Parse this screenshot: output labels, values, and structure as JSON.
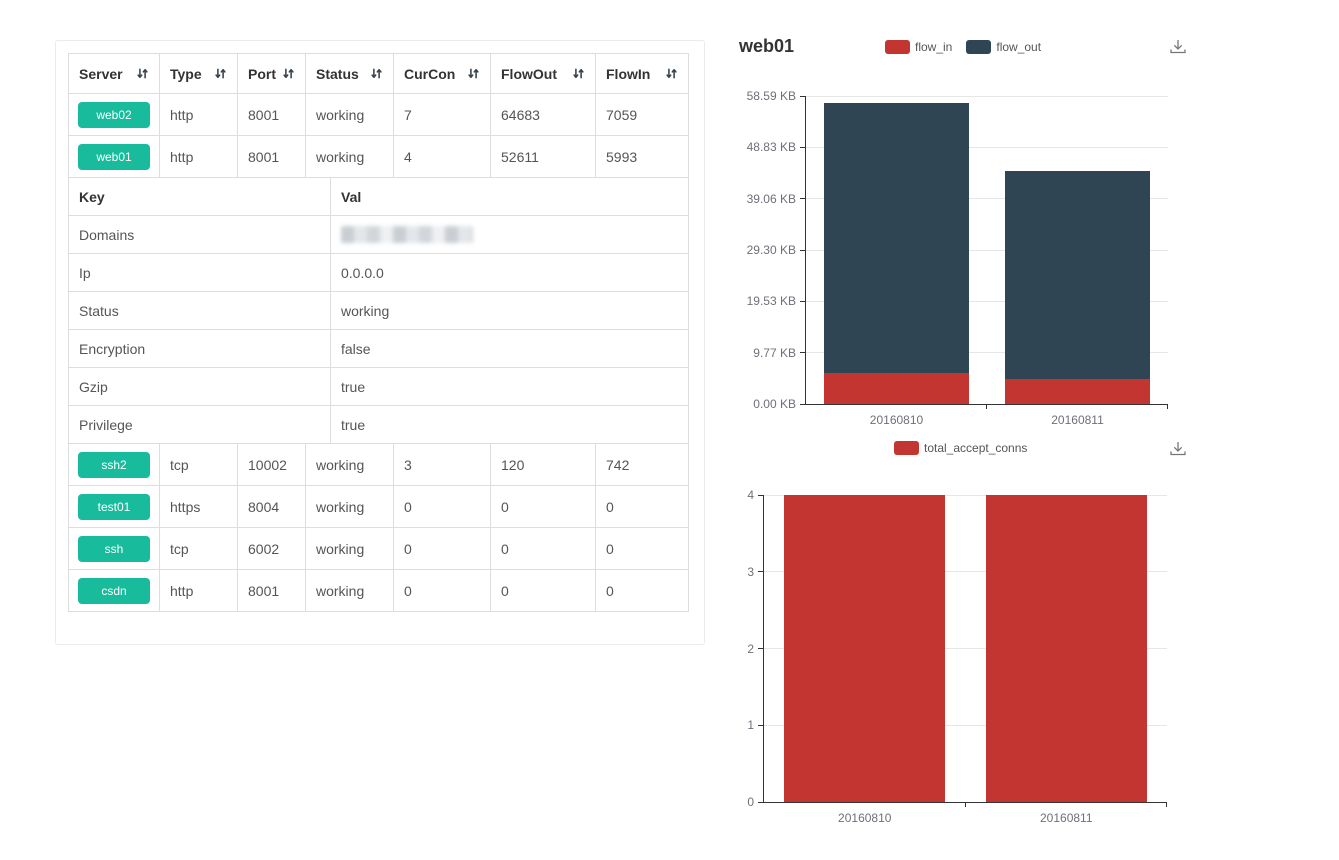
{
  "colors": {
    "badge_green": "#18bc9c",
    "flow_in_red": "#c23531",
    "flow_out_slate": "#2f4554",
    "table_border": "#dddddd",
    "grid_gray": "#e6e6e6",
    "axis_gray": "#333333",
    "tick_label_gray": "#6e7079"
  },
  "icons": {
    "sort": "up-down-arrows",
    "download": "save-as-image-download-arrow"
  },
  "table": {
    "headers": [
      "Server",
      "Type",
      "Port",
      "Status",
      "CurCon",
      "FlowOut",
      "FlowIn"
    ],
    "rows_top": [
      {
        "server": "web02",
        "type": "http",
        "port": "8001",
        "status": "working",
        "curcon": "7",
        "flowout": "64683",
        "flowin": "7059"
      },
      {
        "server": "web01",
        "type": "http",
        "port": "8001",
        "status": "working",
        "curcon": "4",
        "flowout": "52611",
        "flowin": "5993"
      }
    ],
    "detail": {
      "key_header": "Key",
      "val_header": "Val",
      "rows": [
        {
          "key": "Domains",
          "val": "",
          "redacted": true
        },
        {
          "key": "Ip",
          "val": "0.0.0.0"
        },
        {
          "key": "Status",
          "val": "working"
        },
        {
          "key": "Encryption",
          "val": "false"
        },
        {
          "key": "Gzip",
          "val": "true"
        },
        {
          "key": "Privilege",
          "val": "true"
        }
      ]
    },
    "rows_bottom": [
      {
        "server": "ssh2",
        "type": "tcp",
        "port": "10002",
        "status": "working",
        "curcon": "3",
        "flowout": "120",
        "flowin": "742"
      },
      {
        "server": "test01",
        "type": "https",
        "port": "8004",
        "status": "working",
        "curcon": "0",
        "flowout": "0",
        "flowin": "0"
      },
      {
        "server": "ssh",
        "type": "tcp",
        "port": "6002",
        "status": "working",
        "curcon": "0",
        "flowout": "0",
        "flowin": "0"
      },
      {
        "server": "csdn",
        "type": "http",
        "port": "8001",
        "status": "working",
        "curcon": "0",
        "flowout": "0",
        "flowin": "0"
      }
    ]
  },
  "chart_data": [
    {
      "type": "bar",
      "stacked": true,
      "title": "web01",
      "categories": [
        "20160810",
        "20160811"
      ],
      "series": [
        {
          "name": "flow_in",
          "color": "#c23531",
          "values": [
            5993,
            4900
          ]
        },
        {
          "name": "flow_out",
          "color": "#2f4554",
          "values": [
            52611,
            40550
          ]
        }
      ],
      "value_unit": "bytes (axis shown in KB)",
      "ylim": [
        0,
        60000
      ],
      "y_ticks": [
        {
          "value": 0,
          "label": "0.00 KB"
        },
        {
          "value": 10000,
          "label": "9.77 KB"
        },
        {
          "value": 20000,
          "label": "19.53 KB"
        },
        {
          "value": 30000,
          "label": "29.30 KB"
        },
        {
          "value": 40000,
          "label": "39.06 KB"
        },
        {
          "value": 50000,
          "label": "48.83 KB"
        },
        {
          "value": 60000,
          "label": "58.59 KB"
        }
      ],
      "legend_position": "top-center",
      "grid": true,
      "bar_width_ratio": 0.8
    },
    {
      "type": "bar",
      "stacked": false,
      "title": "",
      "categories": [
        "20160810",
        "20160811"
      ],
      "series": [
        {
          "name": "total_accept_conns",
          "color": "#c23531",
          "values": [
            4,
            4
          ]
        }
      ],
      "ylim": [
        0,
        4
      ],
      "y_ticks": [
        {
          "value": 0,
          "label": "0"
        },
        {
          "value": 1,
          "label": "1"
        },
        {
          "value": 2,
          "label": "2"
        },
        {
          "value": 3,
          "label": "3"
        },
        {
          "value": 4,
          "label": "4"
        }
      ],
      "legend_position": "top-center",
      "grid": true,
      "bar_width_ratio": 0.8
    }
  ]
}
